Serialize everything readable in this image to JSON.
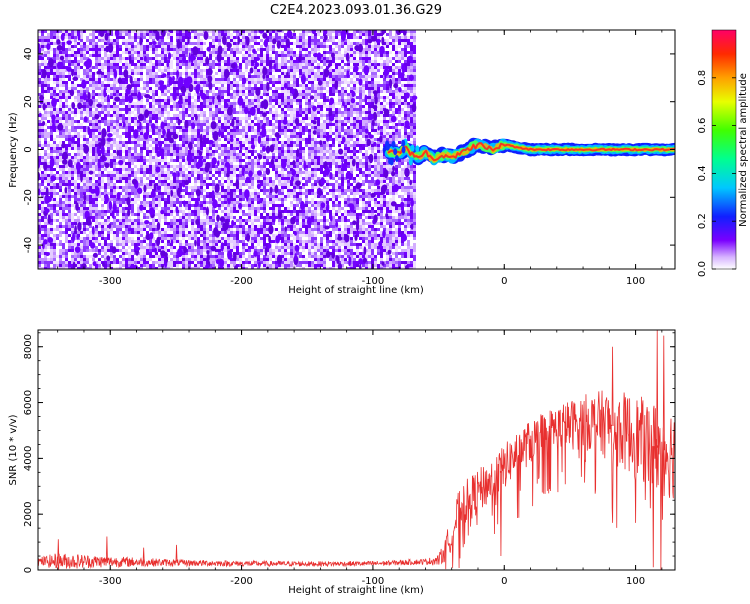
{
  "title": "C2E4.2023.093.01.36.G29",
  "chart_data": [
    {
      "type": "heatmap",
      "xlabel": "Height of straight line (km)",
      "ylabel": "Frequency (Hz)",
      "xlim": [
        -355,
        130
      ],
      "ylim": [
        -50,
        50
      ],
      "x_ticks": [
        -300,
        -200,
        -100,
        0,
        100
      ],
      "y_ticks": [
        -40,
        -20,
        0,
        20,
        40
      ],
      "noise_region_x": [
        -355,
        -68
      ],
      "signal_track": {
        "x": [
          -88,
          -80,
          -75,
          -70,
          -65,
          -60,
          -55,
          -50,
          -45,
          -40,
          -35,
          -30,
          -25,
          -20,
          -15,
          -10,
          -5,
          0,
          10,
          20,
          30,
          40,
          50,
          60,
          70,
          80,
          90,
          100,
          110,
          120,
          130
        ],
        "y": [
          -1,
          -2,
          1,
          -2,
          -3,
          -1,
          -4,
          -3,
          -2,
          -3,
          -2,
          -1,
          1,
          2,
          1,
          0,
          1,
          2,
          1,
          0,
          0,
          0,
          0,
          0,
          0,
          0,
          0,
          0,
          0,
          0,
          0
        ]
      },
      "colorbar": {
        "label": "Normalized spectral amplitude",
        "ticks": [
          "0.0",
          "0.2",
          "0.4",
          "0.6",
          "0.8"
        ],
        "range": [
          0,
          1
        ]
      }
    },
    {
      "type": "line",
      "xlabel": "Height of straight line (km)",
      "ylabel": "SNR (10 * v/v)",
      "xlim": [
        -355,
        130
      ],
      "ylim": [
        0,
        8600
      ],
      "x_ticks": [
        -300,
        -200,
        -100,
        0,
        100
      ],
      "y_ticks": [
        0,
        2000,
        4000,
        6000,
        8000
      ],
      "line_color": "#e8302f",
      "envelope": {
        "x": [
          -355,
          -340,
          -300,
          -250,
          -200,
          -150,
          -100,
          -60,
          -50,
          -45,
          -40,
          -35,
          -30,
          -20,
          -10,
          0,
          10,
          20,
          30,
          40,
          50,
          60,
          70,
          80,
          90,
          100,
          110,
          120,
          130
        ],
        "mean": [
          300,
          320,
          300,
          260,
          230,
          220,
          230,
          300,
          350,
          700,
          1400,
          2000,
          2400,
          2800,
          3200,
          3700,
          4200,
          4600,
          4900,
          5100,
          5200,
          5300,
          5300,
          5200,
          5000,
          4800,
          4500,
          4300,
          4200
        ],
        "spread": [
          150,
          300,
          200,
          120,
          100,
          90,
          90,
          100,
          200,
          400,
          700,
          800,
          800,
          800,
          800,
          800,
          800,
          800,
          800,
          800,
          900,
          1000,
          1100,
          1300,
          1400,
          1500,
          1600,
          1700,
          1700
        ]
      },
      "spikes": [
        {
          "x": -340,
          "y": 1100
        },
        {
          "x": -303,
          "y": 1200
        },
        {
          "x": -275,
          "y": 800
        },
        {
          "x": -250,
          "y": 900
        },
        {
          "x": -3,
          "y": 500
        },
        {
          "x": 82,
          "y": 8000
        },
        {
          "x": 116,
          "y": 8600
        },
        {
          "x": 121,
          "y": 8400
        },
        {
          "x": 113,
          "y": 100
        },
        {
          "x": 120,
          "y": 1800
        }
      ]
    }
  ]
}
